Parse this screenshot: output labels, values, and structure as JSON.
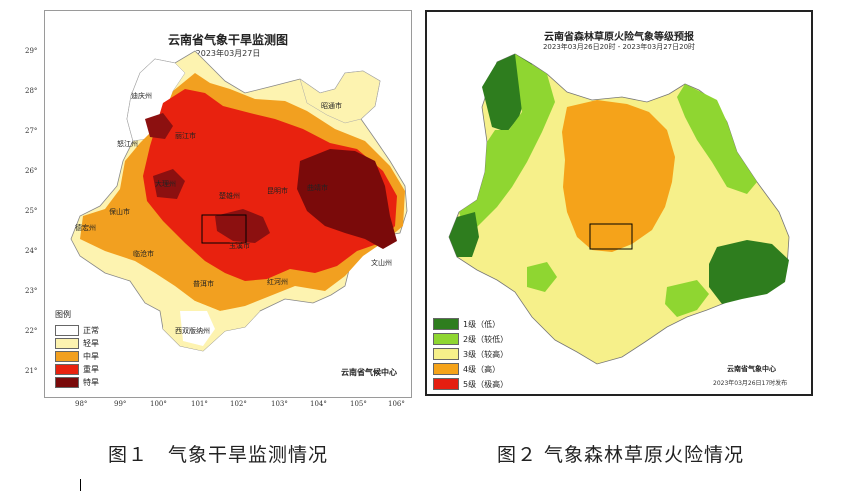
{
  "map1": {
    "title": "云南省气象干旱监测图",
    "date": "2023年03月27日",
    "credit": "云南省气候中心",
    "legend_title": "图例",
    "legend": [
      {
        "label": "正常",
        "color": "#ffffff"
      },
      {
        "label": "轻旱",
        "color": "#fdf3b0"
      },
      {
        "label": "中旱",
        "color": "#f2a020"
      },
      {
        "label": "重旱",
        "color": "#e8220f"
      },
      {
        "label": "特旱",
        "color": "#7a0a0a"
      }
    ],
    "lat_ticks": [
      "29°",
      "28°",
      "27°",
      "26°",
      "25°",
      "24°",
      "23°",
      "22°",
      "21°"
    ],
    "lon_ticks": [
      "98°",
      "99°",
      "100°",
      "101°",
      "102°",
      "103°",
      "104°",
      "105°",
      "106°"
    ],
    "cities": [
      {
        "name": "迪庆州"
      },
      {
        "name": "丽江市"
      },
      {
        "name": "怒江州"
      },
      {
        "name": "大理州"
      },
      {
        "name": "楚雄州"
      },
      {
        "name": "曲靖市"
      },
      {
        "name": "昆明市"
      },
      {
        "name": "保山市"
      },
      {
        "name": "德宏州"
      },
      {
        "name": "临沧市"
      },
      {
        "name": "玉溪市"
      },
      {
        "name": "普洱市"
      },
      {
        "name": "红河州"
      },
      {
        "name": "文山州"
      },
      {
        "name": "西双版纳州"
      },
      {
        "name": "昭通市"
      }
    ]
  },
  "map2": {
    "title": "云南省森林草原火险气象等级预报",
    "period": "2023年03月26日20时 - 2023年03月27日20时",
    "credit": "云南省气象中心",
    "issued": "2023年03月26日17时发布",
    "legend": [
      {
        "label": "1级（低）",
        "color": "#2e7d1e"
      },
      {
        "label": "2级（较低）",
        "color": "#8fd631"
      },
      {
        "label": "3级（较高）",
        "color": "#f6f08a"
      },
      {
        "label": "4级（高）",
        "color": "#f5a31a"
      },
      {
        "label": "5级（极高）",
        "color": "#e51e10"
      }
    ]
  },
  "captions": {
    "fig1": "图１　气象干旱监测情况",
    "fig2": "图２ 气象森林草原火险情况"
  }
}
